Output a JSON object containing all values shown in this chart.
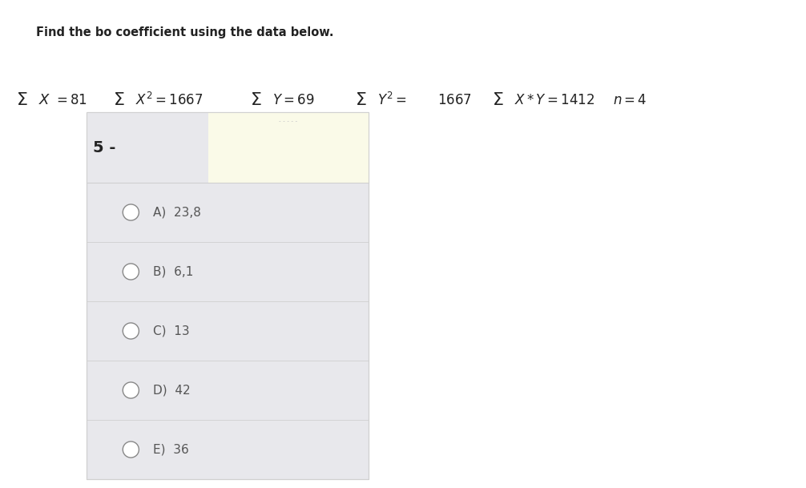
{
  "title": "Find the bo coefficient using the data below.",
  "question_number": "5 -",
  "options": [
    "A)  23,8",
    "B)  6,1",
    "C)  13",
    "D)  42",
    "E)  36"
  ],
  "bg_color_main": "#e8e8ec",
  "bg_color_highlight": "#fafae8",
  "white_bg": "#ffffff",
  "text_color": "#222222",
  "option_text_color": "#555555",
  "border_color": "#d0d0d0",
  "title_fontsize": 10.5,
  "option_fontsize": 11,
  "qnum_fontsize": 14,
  "small_text_color": "#bbbbbb",
  "circle_color": "#888888"
}
